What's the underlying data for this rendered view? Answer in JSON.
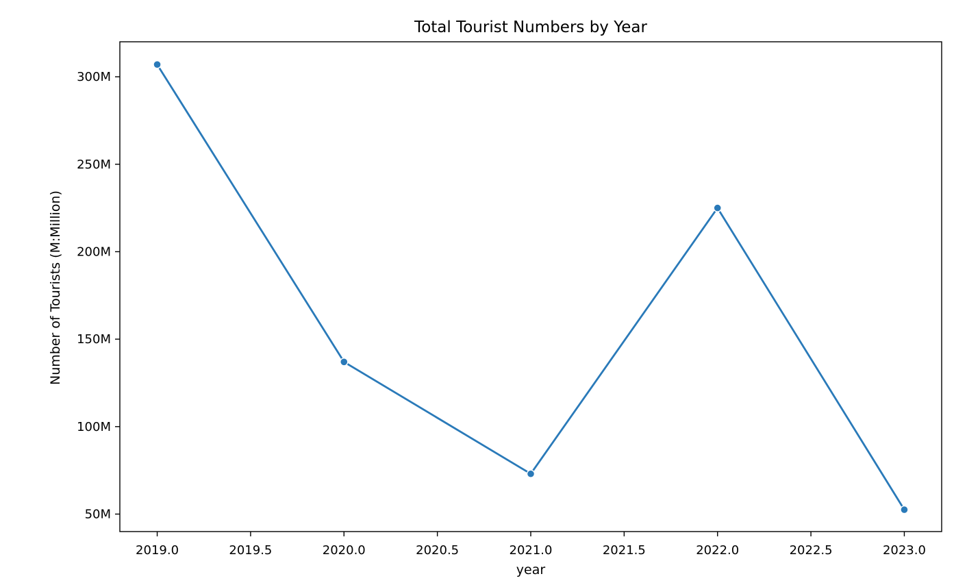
{
  "chart_data": {
    "type": "line",
    "title": "Total Tourist Numbers by Year",
    "xlabel": "year",
    "ylabel": "Number of Tourists (M:Million)",
    "xlim": [
      2018.8,
      2023.2
    ],
    "ylim": [
      40000000,
      320000000
    ],
    "x_ticks": [
      2019.0,
      2019.5,
      2020.0,
      2020.5,
      2021.0,
      2021.5,
      2022.0,
      2022.5,
      2023.0
    ],
    "x_tick_labels": [
      "2019.0",
      "2019.5",
      "2020.0",
      "2020.5",
      "2021.0",
      "2021.5",
      "2022.0",
      "2022.5",
      "2023.0"
    ],
    "y_ticks": [
      50000000,
      100000000,
      150000000,
      200000000,
      250000000,
      300000000
    ],
    "y_tick_labels": [
      "50M",
      "100M",
      "150M",
      "200M",
      "250M",
      "300M"
    ],
    "grid": false,
    "legend": "none",
    "series": [
      {
        "x": [
          2019,
          2020,
          2021,
          2022,
          2023
        ],
        "values": [
          307000000,
          137000000,
          73000000,
          225000000,
          52500000
        ],
        "color": "#2a7ab9",
        "marker": "circle"
      }
    ]
  }
}
